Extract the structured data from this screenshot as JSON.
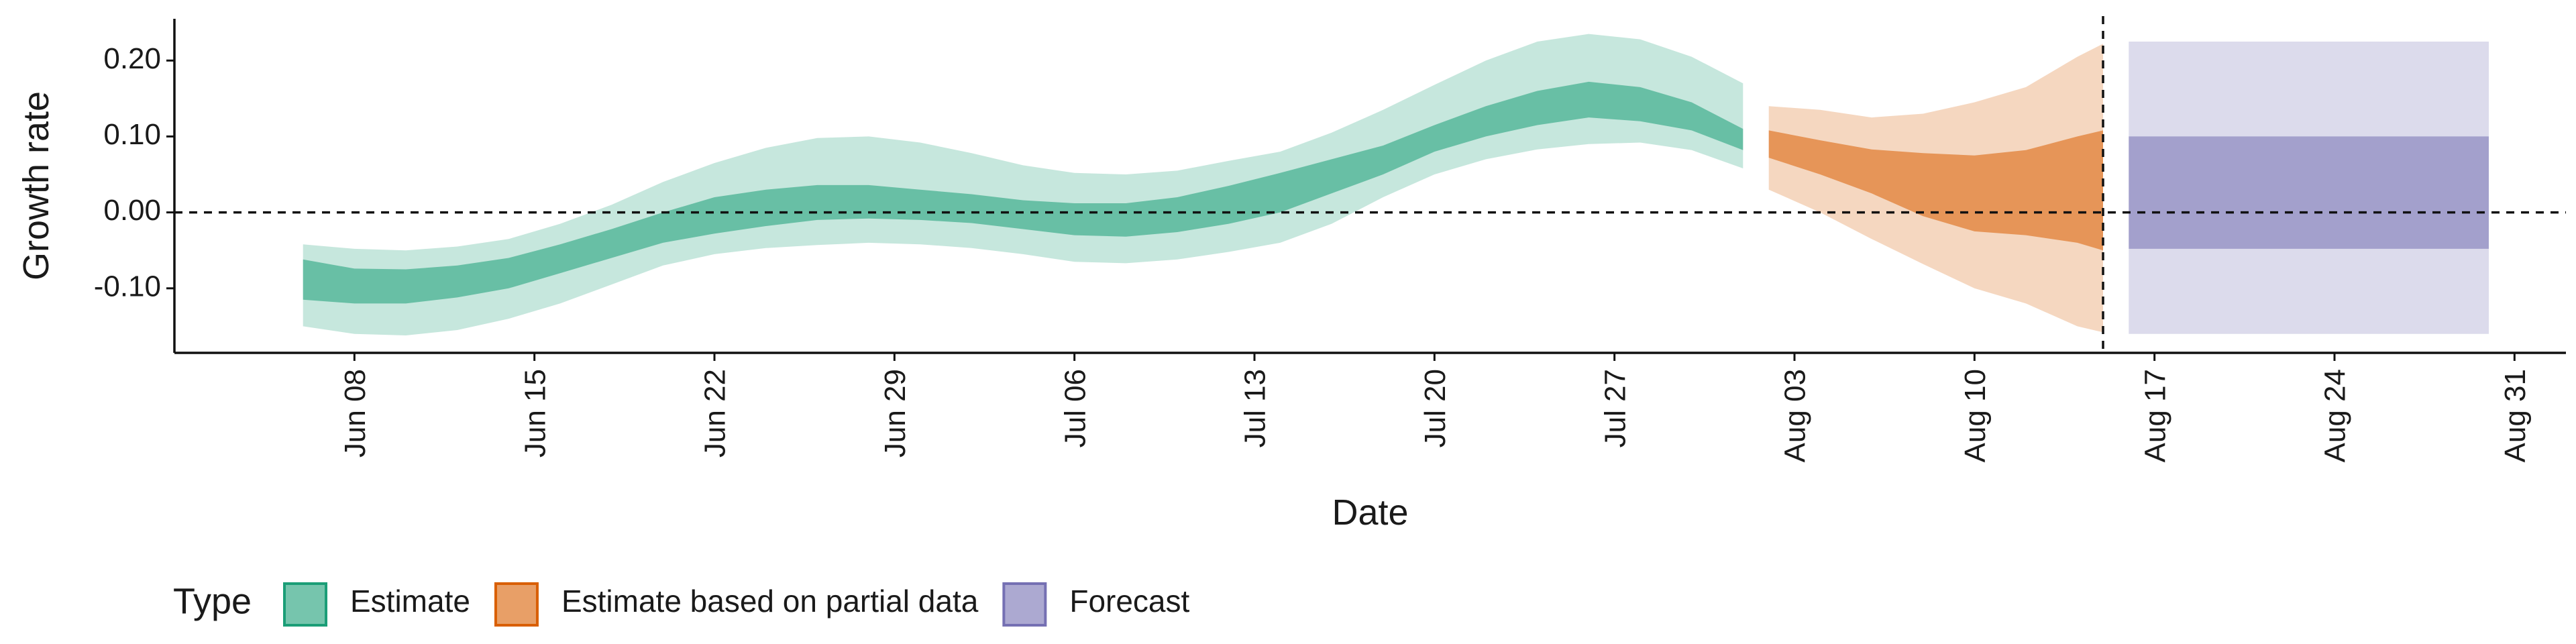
{
  "chart_data": {
    "type": "area",
    "xlabel": "Date",
    "ylabel": "Growth rate",
    "x_range": [
      "2020-06-01",
      "2020-09-02"
    ],
    "ylim": [
      -0.185,
      0.255
    ],
    "y_ticks": [
      0.2,
      0.1,
      0.0,
      -0.1
    ],
    "y_tick_labels": [
      "0.20",
      "0.10",
      "0.00",
      "-0.10"
    ],
    "x_ticks": [
      "2020-06-08",
      "2020-06-15",
      "2020-06-22",
      "2020-06-29",
      "2020-07-06",
      "2020-07-13",
      "2020-07-20",
      "2020-07-27",
      "2020-08-03",
      "2020-08-10",
      "2020-08-17",
      "2020-08-24",
      "2020-08-31"
    ],
    "x_tick_labels": [
      "Jun 08",
      "Jun 15",
      "Jun 22",
      "Jun 29",
      "Jul 06",
      "Jul 13",
      "Jul 20",
      "Jul 27",
      "Aug 03",
      "Aug 10",
      "Aug 17",
      "Aug 24",
      "Aug 31"
    ],
    "reference_lines": [
      {
        "axis": "y",
        "value": 0.0,
        "style": "dashed"
      },
      {
        "axis": "x",
        "value": "2020-08-15",
        "style": "dashed"
      }
    ],
    "grid": false,
    "legend": {
      "title": "Type",
      "position": "bottom",
      "entries": [
        {
          "label": "Estimate",
          "color": "#1b9e77"
        },
        {
          "label": "Estimate based on partial data",
          "color": "#d95f02"
        },
        {
          "label": "Forecast",
          "color": "#7570b3"
        }
      ]
    },
    "series": [
      {
        "name": "Estimate",
        "color": "#1b9e77",
        "x": [
          "2020-06-06",
          "2020-06-08",
          "2020-06-10",
          "2020-06-12",
          "2020-06-14",
          "2020-06-16",
          "2020-06-18",
          "2020-06-20",
          "2020-06-22",
          "2020-06-24",
          "2020-06-26",
          "2020-06-28",
          "2020-06-30",
          "2020-07-02",
          "2020-07-04",
          "2020-07-06",
          "2020-07-08",
          "2020-07-10",
          "2020-07-12",
          "2020-07-14",
          "2020-07-16",
          "2020-07-18",
          "2020-07-20",
          "2020-07-22",
          "2020-07-24",
          "2020-07-26",
          "2020-07-28",
          "2020-07-30",
          "2020-08-01"
        ],
        "lower_90": [
          -0.15,
          -0.16,
          -0.162,
          -0.155,
          -0.14,
          -0.12,
          -0.095,
          -0.07,
          -0.055,
          -0.047,
          -0.043,
          -0.04,
          -0.042,
          -0.047,
          -0.055,
          -0.065,
          -0.067,
          -0.062,
          -0.052,
          -0.04,
          -0.015,
          0.02,
          0.05,
          0.07,
          0.083,
          0.09,
          0.092,
          0.082,
          0.058
        ],
        "lower_50": [
          -0.115,
          -0.12,
          -0.12,
          -0.112,
          -0.1,
          -0.08,
          -0.06,
          -0.04,
          -0.028,
          -0.018,
          -0.01,
          -0.008,
          -0.01,
          -0.014,
          -0.022,
          -0.03,
          -0.032,
          -0.026,
          -0.015,
          0.0,
          0.025,
          0.05,
          0.08,
          0.1,
          0.115,
          0.125,
          0.12,
          0.108,
          0.082
        ],
        "upper_50": [
          -0.062,
          -0.074,
          -0.075,
          -0.07,
          -0.06,
          -0.042,
          -0.022,
          0.0,
          0.02,
          0.03,
          0.036,
          0.036,
          0.03,
          0.024,
          0.016,
          0.012,
          0.012,
          0.02,
          0.035,
          0.052,
          0.07,
          0.088,
          0.115,
          0.14,
          0.16,
          0.172,
          0.165,
          0.145,
          0.11
        ],
        "upper_90": [
          -0.042,
          -0.048,
          -0.05,
          -0.045,
          -0.035,
          -0.015,
          0.01,
          0.04,
          0.065,
          0.085,
          0.098,
          0.1,
          0.092,
          0.078,
          0.062,
          0.052,
          0.05,
          0.055,
          0.068,
          0.08,
          0.105,
          0.135,
          0.168,
          0.2,
          0.225,
          0.235,
          0.228,
          0.205,
          0.17
        ]
      },
      {
        "name": "Estimate based on partial data",
        "color": "#d95f02",
        "x": [
          "2020-08-02",
          "2020-08-04",
          "2020-08-06",
          "2020-08-08",
          "2020-08-10",
          "2020-08-12",
          "2020-08-14",
          "2020-08-15"
        ],
        "lower_90": [
          0.03,
          0.0,
          -0.035,
          -0.068,
          -0.1,
          -0.12,
          -0.15,
          -0.158
        ],
        "lower_50": [
          0.072,
          0.05,
          0.025,
          -0.005,
          -0.025,
          -0.03,
          -0.04,
          -0.05
        ],
        "upper_50": [
          0.108,
          0.095,
          0.083,
          0.078,
          0.075,
          0.082,
          0.1,
          0.108
        ],
        "upper_90": [
          0.14,
          0.135,
          0.125,
          0.13,
          0.145,
          0.165,
          0.205,
          0.222
        ]
      },
      {
        "name": "Forecast",
        "color": "#7570b3",
        "x": [
          "2020-08-16",
          "2020-08-30"
        ],
        "lower_90": [
          -0.16,
          -0.16
        ],
        "lower_50": [
          -0.048,
          -0.048
        ],
        "upper_50": [
          0.1,
          0.1
        ],
        "upper_90": [
          0.225,
          0.225
        ]
      }
    ]
  }
}
